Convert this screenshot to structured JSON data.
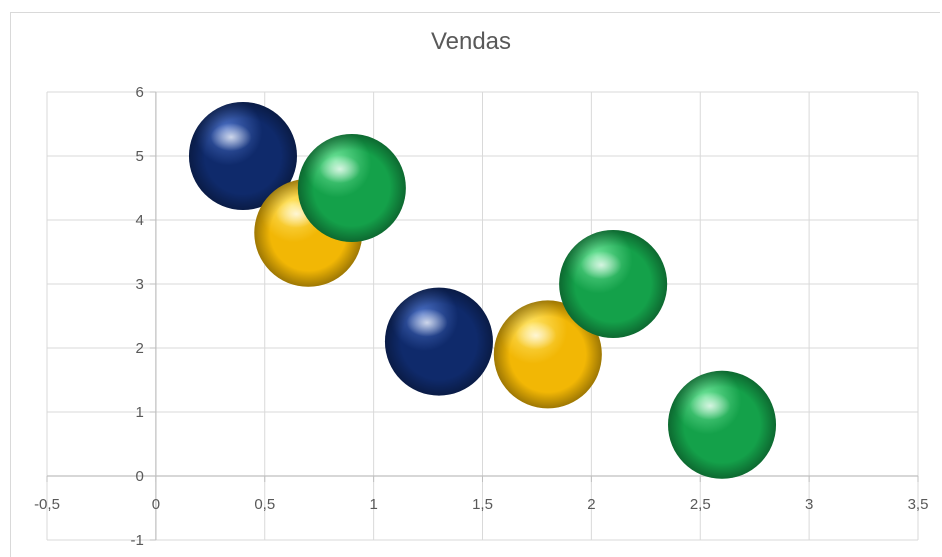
{
  "chart_data": {
    "type": "bubble",
    "title": "Vendas",
    "xlim": [
      -0.5,
      3.5
    ],
    "ylim": [
      -1,
      6
    ],
    "x_ticks": [
      "-0,5",
      "0",
      "0,5",
      "1",
      "1,5",
      "2",
      "2,5",
      "3",
      "3,5"
    ],
    "x_tick_values": [
      -0.5,
      0,
      0.5,
      1,
      1.5,
      2,
      2.5,
      3,
      3.5
    ],
    "y_ticks": [
      "-1",
      "0",
      "1",
      "2",
      "3",
      "4",
      "5",
      "6"
    ],
    "y_tick_values": [
      -1,
      0,
      1,
      2,
      3,
      4,
      5,
      6
    ],
    "grid": true,
    "legend": "none",
    "series": [
      {
        "color": "#0f2a6b",
        "highlight": "#4a6fc4",
        "points": [
          {
            "x": 0.4,
            "y": 5.0
          },
          {
            "x": 1.3,
            "y": 2.1
          }
        ]
      },
      {
        "color": "#f2b705",
        "highlight": "#ffe66b",
        "points": [
          {
            "x": 0.7,
            "y": 3.8
          },
          {
            "x": 1.8,
            "y": 1.9
          }
        ]
      },
      {
        "color": "#14a14a",
        "highlight": "#6fe59a",
        "points": [
          {
            "x": 0.9,
            "y": 4.5
          },
          {
            "x": 2.1,
            "y": 3.0
          },
          {
            "x": 2.6,
            "y": 0.8
          }
        ]
      }
    ]
  }
}
